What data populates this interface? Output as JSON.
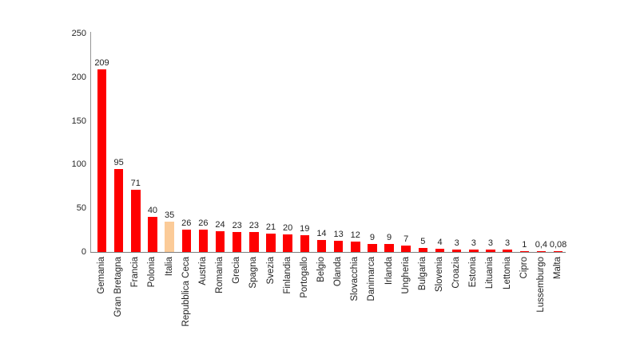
{
  "chart_data": {
    "type": "bar",
    "title": "",
    "categories": [
      "Gemania",
      "Gran Bretagna",
      "Francia",
      "Polonia",
      "Italia",
      "Repubblica Ceca",
      "Austria",
      "Romania",
      "Grecia",
      "Spagna",
      "Svezia",
      "Finlandia",
      "Portogallo",
      "Belgio",
      "Olanda",
      "Slovacchia",
      "Danimarca",
      "Irlanda",
      "Ungheria",
      "Bulgaria",
      "Slovenia",
      "Croazia",
      "Estonia",
      "Lituania",
      "Lettonia",
      "Cipro",
      "Lussemburgo",
      "Malta"
    ],
    "values": [
      209,
      95,
      71,
      40,
      35,
      26,
      26,
      24,
      23,
      23,
      21,
      20,
      19,
      14,
      13,
      12,
      9,
      9,
      7,
      5,
      4,
      3,
      3,
      3,
      3,
      1,
      0.4,
      0.08
    ],
    "value_labels": [
      "209",
      "95",
      "71",
      "40",
      "35",
      "26",
      "26",
      "24",
      "23",
      "23",
      "21",
      "20",
      "19",
      "14",
      "13",
      "12",
      "9",
      "9",
      "7",
      "5",
      "4",
      "3",
      "3",
      "3",
      "3",
      "1",
      "0,4",
      "0,08"
    ],
    "highlighted_category": "Italia",
    "highlight_index": 4,
    "yticks": [
      "0",
      "50",
      "100",
      "150",
      "200",
      "250"
    ],
    "ylim": [
      0,
      250
    ],
    "xlabel": "",
    "ylabel": "",
    "grid": false,
    "legend": null,
    "colors": {
      "bar": "#fe0000",
      "highlight": "#fbcb98",
      "y_axis": "#969696",
      "x_axis": "#7d7d7d",
      "text": "#1f1f1f"
    }
  }
}
